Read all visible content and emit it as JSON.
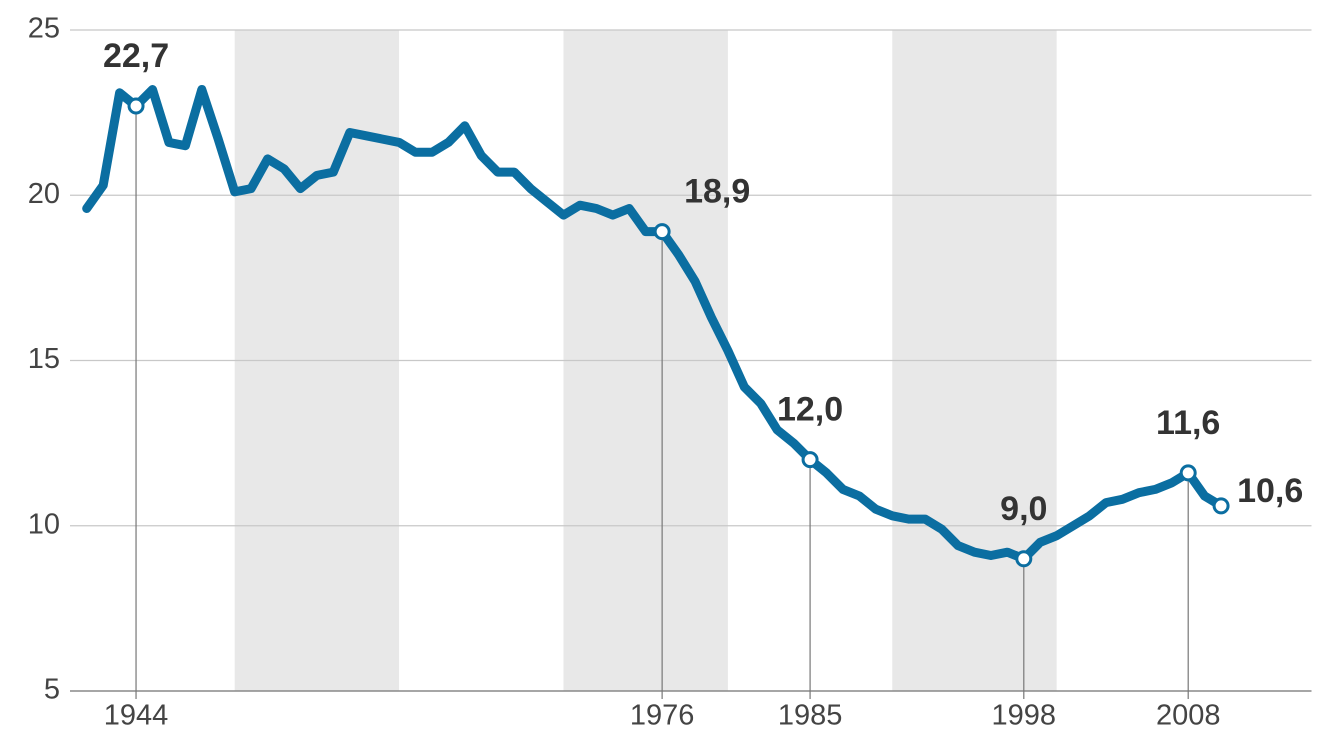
{
  "chart_data": {
    "type": "line",
    "x": [
      1941,
      1942,
      1943,
      1944,
      1945,
      1946,
      1947,
      1948,
      1949,
      1950,
      1951,
      1952,
      1953,
      1954,
      1955,
      1956,
      1957,
      1958,
      1959,
      1960,
      1961,
      1962,
      1963,
      1964,
      1965,
      1966,
      1967,
      1968,
      1969,
      1970,
      1971,
      1972,
      1973,
      1974,
      1975,
      1976,
      1977,
      1978,
      1979,
      1980,
      1981,
      1982,
      1983,
      1984,
      1985,
      1986,
      1987,
      1988,
      1989,
      1990,
      1991,
      1992,
      1993,
      1994,
      1995,
      1996,
      1997,
      1998,
      1999,
      2000,
      2001,
      2002,
      2003,
      2004,
      2005,
      2006,
      2007,
      2008,
      2009,
      2010
    ],
    "series": [
      {
        "color": "#0b6ea1",
        "values": [
          19.6,
          20.3,
          23.1,
          22.7,
          23.2,
          21.6,
          21.5,
          23.2,
          21.7,
          20.1,
          20.2,
          21.1,
          20.8,
          20.2,
          20.6,
          20.7,
          21.9,
          21.8,
          21.7,
          21.6,
          21.3,
          21.3,
          21.6,
          22.1,
          21.2,
          20.7,
          20.7,
          20.2,
          19.8,
          19.4,
          19.7,
          19.6,
          19.4,
          19.6,
          18.9,
          18.9,
          18.2,
          17.4,
          16.3,
          15.3,
          14.2,
          13.7,
          12.9,
          12.5,
          12.0,
          11.6,
          11.1,
          10.9,
          10.5,
          10.3,
          10.2,
          10.2,
          9.9,
          9.4,
          9.2,
          9.1,
          9.2,
          9.0,
          9.5,
          9.7,
          10.0,
          10.3,
          10.7,
          10.8,
          11.0,
          11.1,
          11.3,
          11.6,
          10.9,
          10.6
        ],
        "value_labels": [
          null,
          null,
          null,
          "22,7",
          null,
          null,
          null,
          null,
          null,
          null,
          null,
          null,
          null,
          null,
          null,
          null,
          null,
          null,
          null,
          null,
          null,
          null,
          null,
          null,
          null,
          null,
          null,
          null,
          null,
          null,
          null,
          null,
          null,
          null,
          null,
          "18,9",
          null,
          null,
          null,
          null,
          null,
          null,
          null,
          null,
          "12,0",
          null,
          null,
          null,
          null,
          null,
          null,
          null,
          null,
          null,
          null,
          null,
          null,
          "9,0",
          null,
          null,
          null,
          null,
          null,
          null,
          null,
          null,
          null,
          "11,6",
          null,
          "10,6"
        ]
      }
    ],
    "shaded_ranges": [
      [
        1950,
        1960
      ],
      [
        1970,
        1980
      ],
      [
        1990,
        2000
      ]
    ],
    "xlim": [
      1940.5,
      2015.5
    ],
    "xticks": [
      1944,
      1976,
      1985,
      1998,
      2008
    ],
    "ylim": [
      5,
      25
    ],
    "yticks": [
      5,
      10,
      15,
      20,
      25
    ],
    "grid": true
  }
}
